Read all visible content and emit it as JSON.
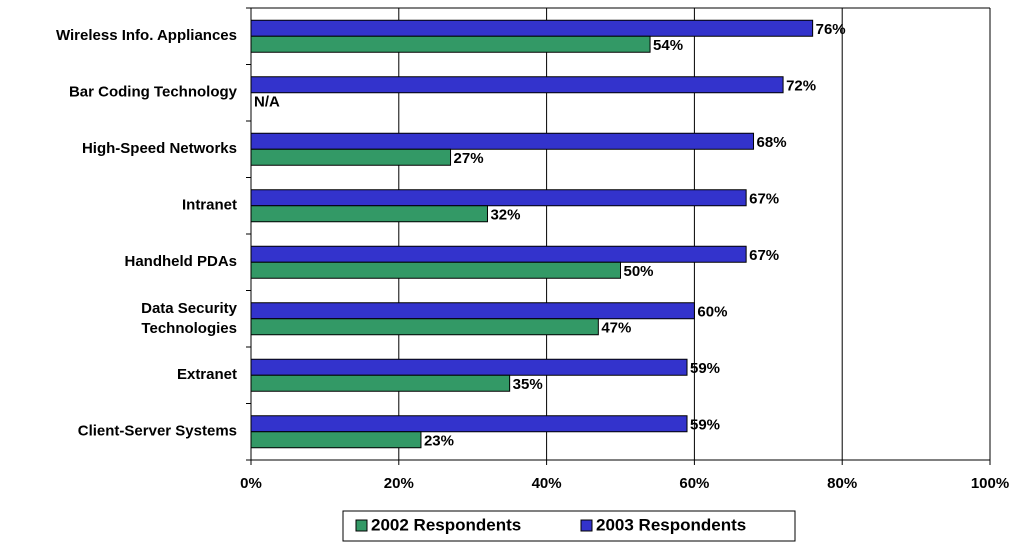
{
  "chart_data": {
    "type": "hbar",
    "categories": [
      "Wireless Info. Appliances",
      "Bar Coding Technology",
      "High-Speed Networks",
      "Intranet",
      "Handheld PDAs",
      "Data Security\nTechnologies",
      "Extranet",
      "Client-Server Systems"
    ],
    "series": [
      {
        "name": "2002 Respondents",
        "color": "#339966",
        "values": [
          54,
          null,
          27,
          32,
          50,
          47,
          35,
          23
        ],
        "value_labels": [
          "54%",
          "N/A",
          "27%",
          "32%",
          "50%",
          "47%",
          "35%",
          "23%"
        ]
      },
      {
        "name": "2003 Respondents",
        "color": "#3333cc",
        "values": [
          76,
          72,
          68,
          67,
          67,
          60,
          59,
          59
        ],
        "value_labels": [
          "76%",
          "72%",
          "68%",
          "67%",
          "67%",
          "60%",
          "59%",
          "59%"
        ]
      }
    ],
    "xlim": [
      0,
      100
    ],
    "xticks": [
      {
        "value": 0,
        "label": "0%"
      },
      {
        "value": 20,
        "label": "20%"
      },
      {
        "value": 40,
        "label": "40%"
      },
      {
        "value": 60,
        "label": "60%"
      },
      {
        "value": 80,
        "label": "80%"
      },
      {
        "value": 100,
        "label": "100%"
      }
    ],
    "grid": true
  }
}
